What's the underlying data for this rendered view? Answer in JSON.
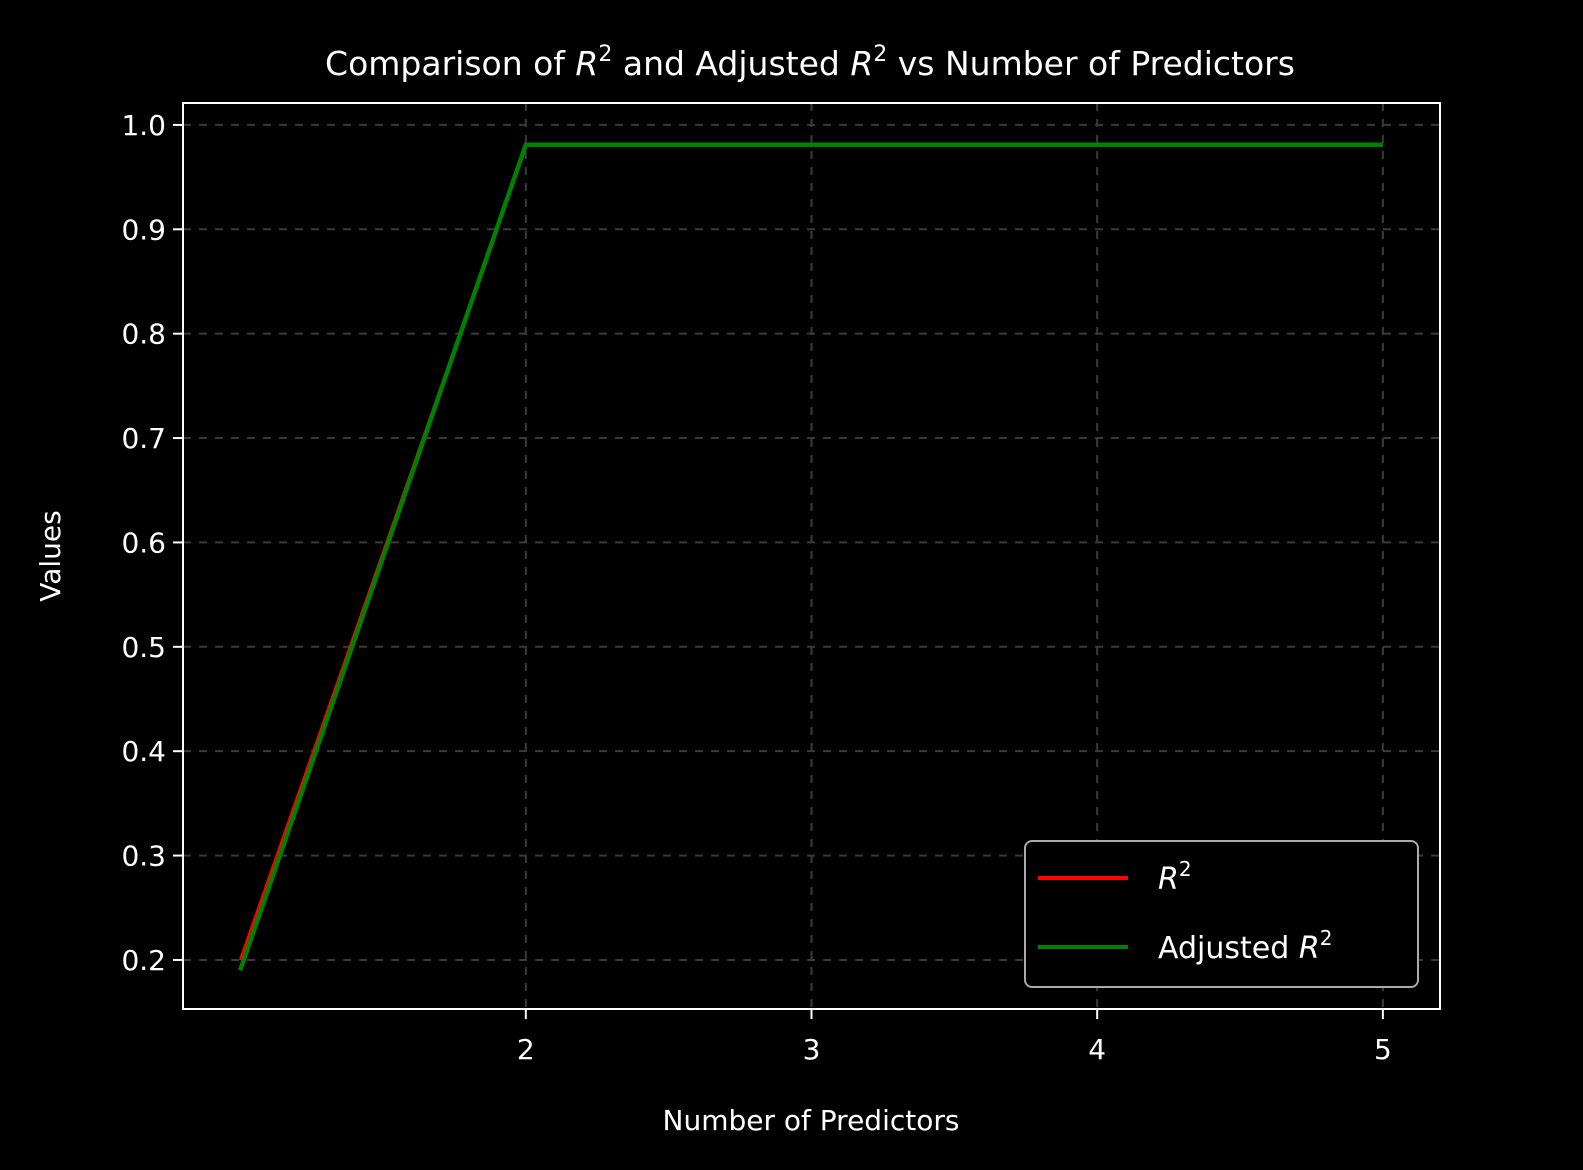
{
  "chart_data": {
    "type": "line",
    "title": "Comparison of R² and Adjusted R² vs Number of Predictors",
    "title_parts": {
      "prefix": "Comparison of ",
      "r": "R",
      "sup": "2",
      "middle": " and Adjusted ",
      "suffix": " vs Number of Predictors"
    },
    "xlabel": "Number of Predictors",
    "ylabel": "Values",
    "x": [
      1,
      2,
      3,
      4,
      5
    ],
    "xlim": [
      0.8,
      5.2
    ],
    "ylim": [
      0.153,
      1.021
    ],
    "xticks": [
      "2",
      "3",
      "4",
      "5"
    ],
    "yticks": [
      "0.2",
      "0.3",
      "0.4",
      "0.5",
      "0.6",
      "0.7",
      "0.8",
      "0.9",
      "1.0"
    ],
    "grid": true,
    "legend_position": "lower-right",
    "series": [
      {
        "name": "R²",
        "name_parts": {
          "prefix": "",
          "r": "R",
          "sup": "2"
        },
        "color": "#ff0000",
        "values": [
          0.2,
          0.981,
          0.981,
          0.981,
          0.981
        ]
      },
      {
        "name": "Adjusted R²",
        "name_parts": {
          "prefix": "Adjusted ",
          "r": "R",
          "sup": "2"
        },
        "color": "#008000",
        "values": [
          0.19,
          0.981,
          0.981,
          0.981,
          0.981
        ]
      }
    ]
  },
  "colors": {
    "background": "#000000",
    "axes": "#ffffff",
    "grid": "#3a3a3a",
    "legend_border": "#aaaaaa"
  }
}
